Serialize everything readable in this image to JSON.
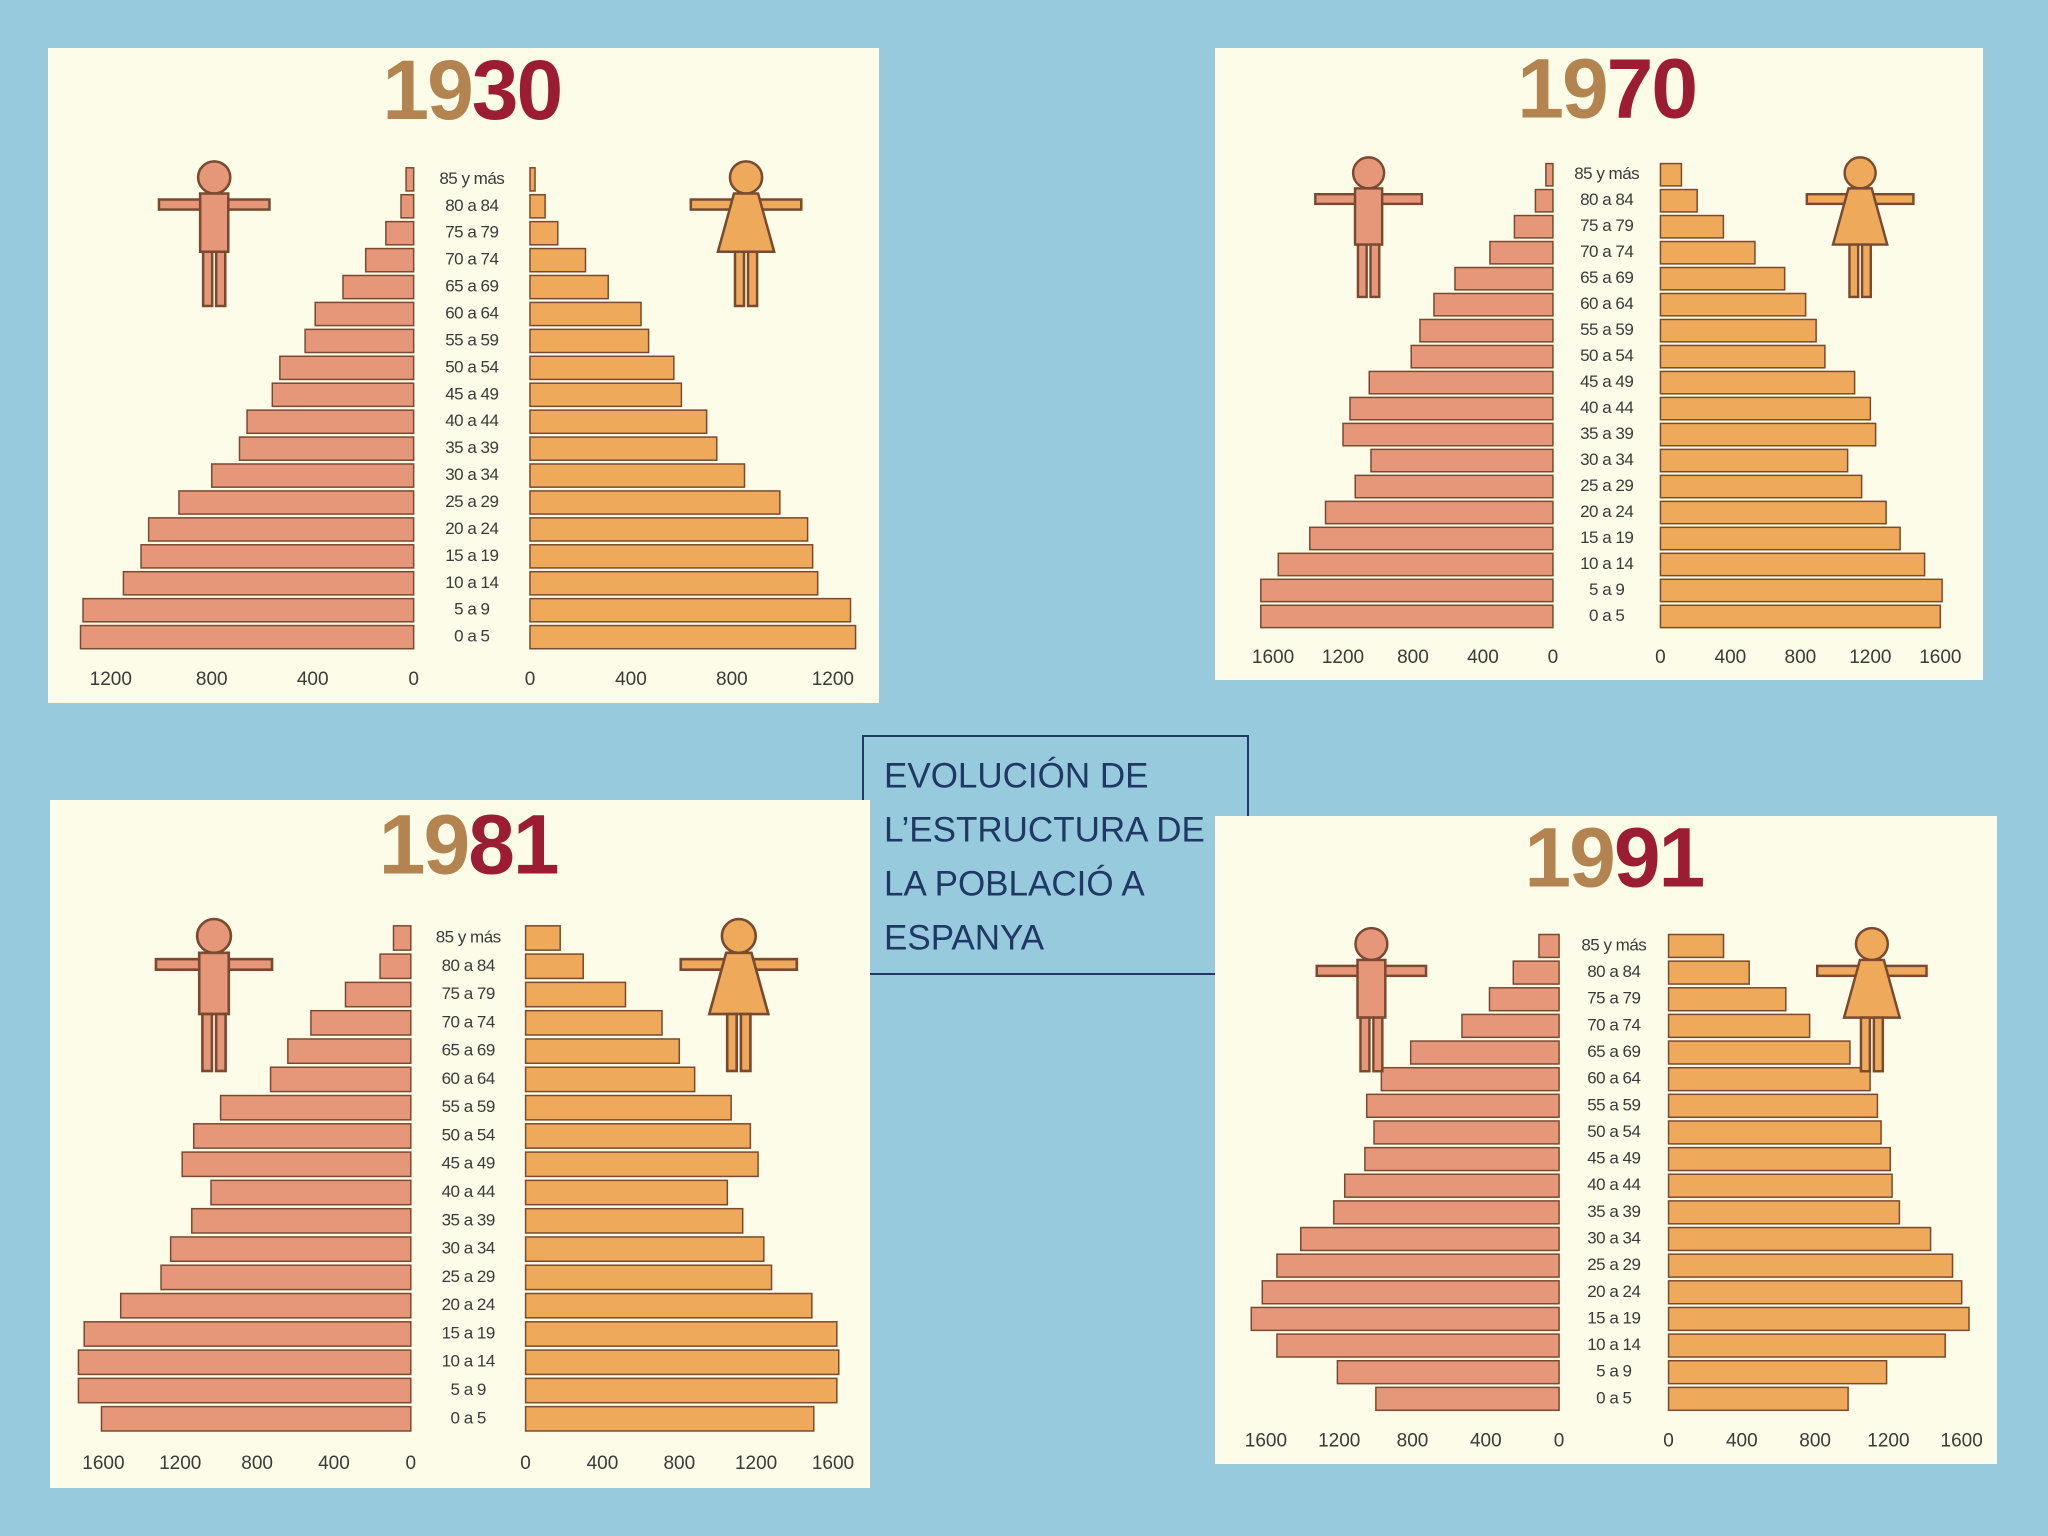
{
  "chart_data": [
    {
      "type": "pyramid",
      "title": "1930",
      "categories": [
        "0 a 5",
        "5 a 9",
        "10 a 14",
        "15 a 19",
        "20 a 24",
        "25 a 29",
        "30 a 34",
        "35 a 39",
        "40 a 44",
        "45 a 49",
        "50 a 54",
        "55 a 59",
        "60 a 64",
        "65 a 69",
        "70 a 74",
        "75 a 79",
        "80 a 84",
        "85 y más"
      ],
      "series": [
        {
          "name": "Hombres",
          "color": "#e6977a",
          "side": "left",
          "values": [
            1320,
            1310,
            1150,
            1080,
            1050,
            930,
            800,
            690,
            660,
            560,
            530,
            430,
            390,
            280,
            190,
            110,
            50,
            30
          ]
        },
        {
          "name": "Mujeres",
          "color": "#efa95a",
          "side": "right",
          "values": [
            1290,
            1270,
            1140,
            1120,
            1100,
            990,
            850,
            740,
            700,
            600,
            570,
            470,
            440,
            310,
            220,
            110,
            60,
            20
          ]
        }
      ],
      "xlim": [
        0,
        1350
      ],
      "xticks": [
        0,
        400,
        800,
        1200
      ]
    },
    {
      "type": "pyramid",
      "title": "1970",
      "categories": [
        "0 a 5",
        "5 a 9",
        "10 a 14",
        "15 a 19",
        "20 a 24",
        "25 a 29",
        "30 a 34",
        "35 a 39",
        "40 a 44",
        "45 a 49",
        "50 a 54",
        "55 a 59",
        "60 a 64",
        "65 a 69",
        "70 a 74",
        "75 a 79",
        "80 a 84",
        "85 y más"
      ],
      "series": [
        {
          "name": "Hombres",
          "color": "#e6977a",
          "side": "left",
          "values": [
            1670,
            1670,
            1570,
            1390,
            1300,
            1130,
            1040,
            1200,
            1160,
            1050,
            810,
            760,
            680,
            560,
            360,
            220,
            100,
            40
          ]
        },
        {
          "name": "Mujeres",
          "color": "#efa95a",
          "side": "right",
          "values": [
            1600,
            1610,
            1510,
            1370,
            1290,
            1150,
            1070,
            1230,
            1200,
            1110,
            940,
            890,
            830,
            710,
            540,
            360,
            210,
            120
          ]
        }
      ],
      "xlim": [
        0,
        1800
      ],
      "xticks": [
        0,
        400,
        800,
        1200,
        1600
      ]
    },
    {
      "type": "pyramid",
      "title": "1981",
      "categories": [
        "0 a 5",
        "5 a 9",
        "10 a 14",
        "15 a 19",
        "20 a 24",
        "25 a 29",
        "30 a 34",
        "35 a 39",
        "40 a 44",
        "45 a 49",
        "50 a 54",
        "55 a 59",
        "60 a 64",
        "65 a 69",
        "70 a 74",
        "75 a 79",
        "80 a 84",
        "85 y más"
      ],
      "series": [
        {
          "name": "Hombres",
          "color": "#e6977a",
          "side": "left",
          "values": [
            1610,
            1730,
            1730,
            1700,
            1510,
            1300,
            1250,
            1140,
            1040,
            1190,
            1130,
            990,
            730,
            640,
            520,
            340,
            160,
            90
          ]
        },
        {
          "name": "Mujeres",
          "color": "#efa95a",
          "side": "right",
          "values": [
            1500,
            1620,
            1630,
            1620,
            1490,
            1280,
            1240,
            1130,
            1050,
            1210,
            1170,
            1070,
            880,
            800,
            710,
            520,
            300,
            180
          ]
        }
      ],
      "xlim": [
        0,
        1750
      ],
      "xticks": [
        0,
        400,
        800,
        1200,
        1600
      ]
    },
    {
      "type": "pyramid",
      "title": "1991",
      "categories": [
        "0 a 5",
        "5 a 9",
        "10 a 14",
        "15 a 19",
        "20 a 24",
        "25 a 29",
        "30 a 34",
        "35 a 39",
        "40 a 44",
        "45 a 49",
        "50 a 54",
        "55 a 59",
        "60 a 64",
        "65 a 69",
        "70 a 74",
        "75 a 79",
        "80 a 84",
        "85 y más"
      ],
      "series": [
        {
          "name": "Hombres",
          "color": "#e6977a",
          "side": "left",
          "values": [
            1000,
            1210,
            1540,
            1680,
            1620,
            1540,
            1410,
            1230,
            1170,
            1060,
            1010,
            1050,
            970,
            810,
            530,
            380,
            250,
            110
          ]
        },
        {
          "name": "Mujeres",
          "color": "#efa95a",
          "side": "right",
          "values": [
            980,
            1190,
            1510,
            1640,
            1600,
            1550,
            1430,
            1260,
            1220,
            1210,
            1160,
            1140,
            1100,
            990,
            770,
            640,
            440,
            300
          ]
        }
      ],
      "xlim": [
        0,
        1750
      ],
      "xticks": [
        0,
        400,
        800,
        1200,
        1600
      ]
    }
  ],
  "text_box": {
    "lines": [
      "EVOLUCIÓN DE",
      "L’ESTRUCTURA DE",
      "LA POBLACIÓ A",
      "ESPANYA"
    ]
  }
}
